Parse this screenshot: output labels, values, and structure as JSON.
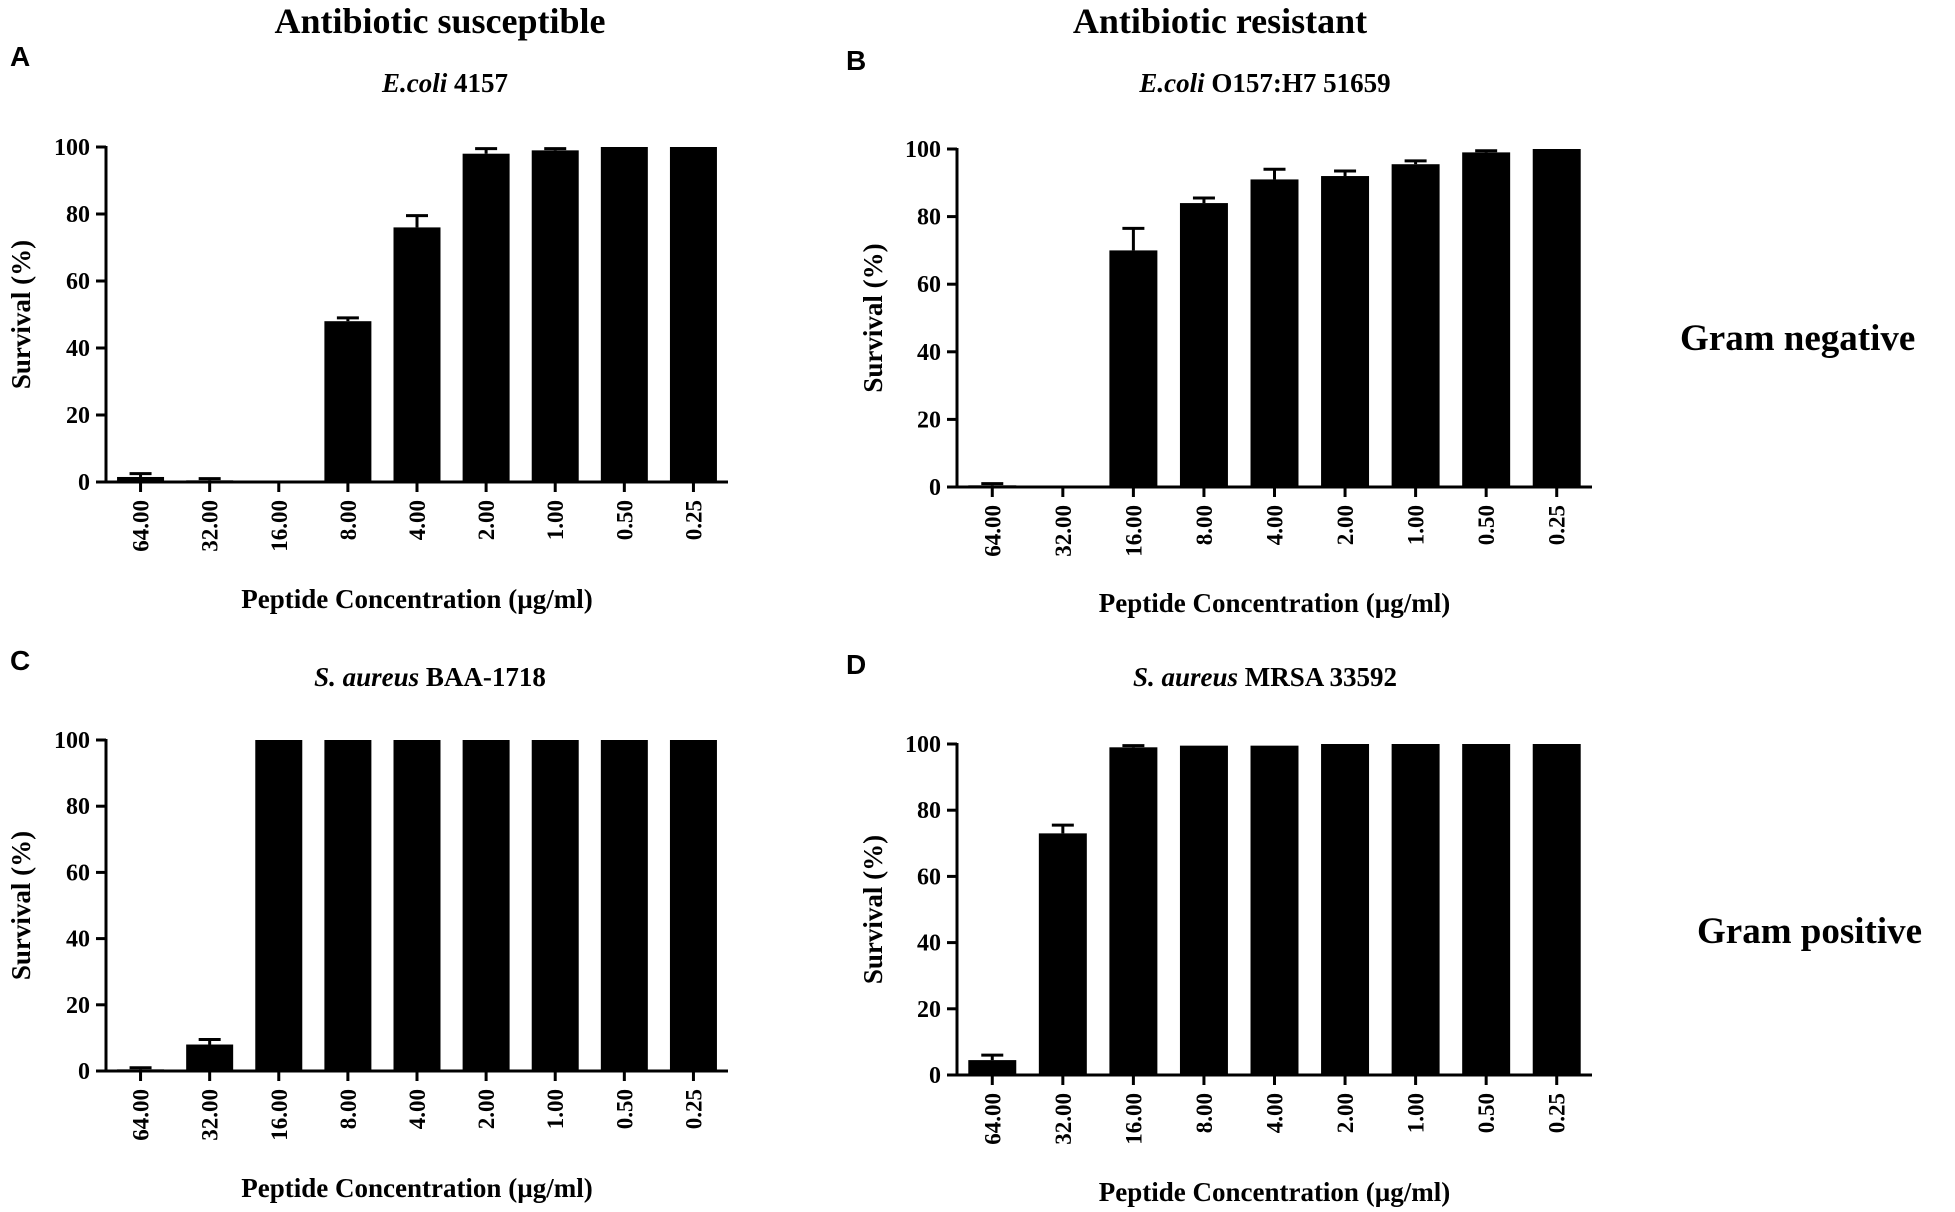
{
  "figure": {
    "columns": [
      "Antibiotic susceptible",
      "Antibiotic resistant"
    ],
    "rows": [
      "Gram negative",
      "Gram positive"
    ]
  },
  "chart_data": [
    {
      "type": "bar",
      "panel": "A",
      "title_italic": "E.coli",
      "title_rest": " 4157",
      "categories": [
        "64.00",
        "32.00",
        "16.00",
        "8.00",
        "4.00",
        "2.00",
        "1.00",
        "0.50",
        "0.25"
      ],
      "values": [
        1.5,
        0.5,
        0,
        48,
        76,
        98,
        99,
        100,
        100
      ],
      "errors": [
        1.0,
        0.5,
        0,
        1,
        3.5,
        1.5,
        0.5,
        0,
        0
      ],
      "xlabel": "Peptide Concentration (µg/ml)",
      "ylabel": "Survival (%)",
      "ylim": [
        0,
        100
      ],
      "yticks": [
        "0",
        "20",
        "40",
        "60",
        "80",
        "100"
      ]
    },
    {
      "type": "bar",
      "panel": "B",
      "title_italic": "E.coli",
      "title_rest": " O157:H7 51659",
      "categories": [
        "64.00",
        "32.00",
        "16.00",
        "8.00",
        "4.00",
        "2.00",
        "1.00",
        "0.50",
        "0.25"
      ],
      "values": [
        0.5,
        0,
        70,
        84,
        91,
        92,
        95.5,
        99,
        100
      ],
      "errors": [
        0.5,
        0,
        6.5,
        1.5,
        3,
        1.5,
        1,
        0.5,
        0
      ],
      "xlabel": "Peptide Concentration (µg/ml)",
      "ylabel": "Survival (%)",
      "ylim": [
        0,
        100
      ],
      "yticks": [
        "0",
        "20",
        "40",
        "60",
        "80",
        "100"
      ]
    },
    {
      "type": "bar",
      "panel": "C",
      "title_italic": "S. aureus",
      "title_rest": " BAA-1718",
      "categories": [
        "64.00",
        "32.00",
        "16.00",
        "8.00",
        "4.00",
        "2.00",
        "1.00",
        "0.50",
        "0.25"
      ],
      "values": [
        0.5,
        8,
        100,
        100,
        100,
        100,
        100,
        100,
        100
      ],
      "errors": [
        0.5,
        1.5,
        0,
        0,
        0,
        0,
        0,
        0,
        0
      ],
      "xlabel": "Peptide Concentration (µg/ml)",
      "ylabel": "Survival (%)",
      "ylim": [
        0,
        100
      ],
      "yticks": [
        "0",
        "20",
        "40",
        "60",
        "80",
        "100"
      ]
    },
    {
      "type": "bar",
      "panel": "D",
      "title_italic": "S. aureus",
      "title_rest": " MRSA 33592",
      "categories": [
        "64.00",
        "32.00",
        "16.00",
        "8.00",
        "4.00",
        "2.00",
        "1.00",
        "0.50",
        "0.25"
      ],
      "values": [
        4.5,
        73,
        99,
        99.5,
        99.5,
        100,
        100,
        100,
        100
      ],
      "errors": [
        1.5,
        2.5,
        0.5,
        0,
        0,
        0,
        0,
        0,
        0
      ],
      "xlabel": "Peptide Concentration (µg/ml)",
      "ylabel": "Survival (%)",
      "ylim": [
        0,
        100
      ],
      "yticks": [
        "0",
        "20",
        "40",
        "60",
        "80",
        "100"
      ]
    }
  ]
}
